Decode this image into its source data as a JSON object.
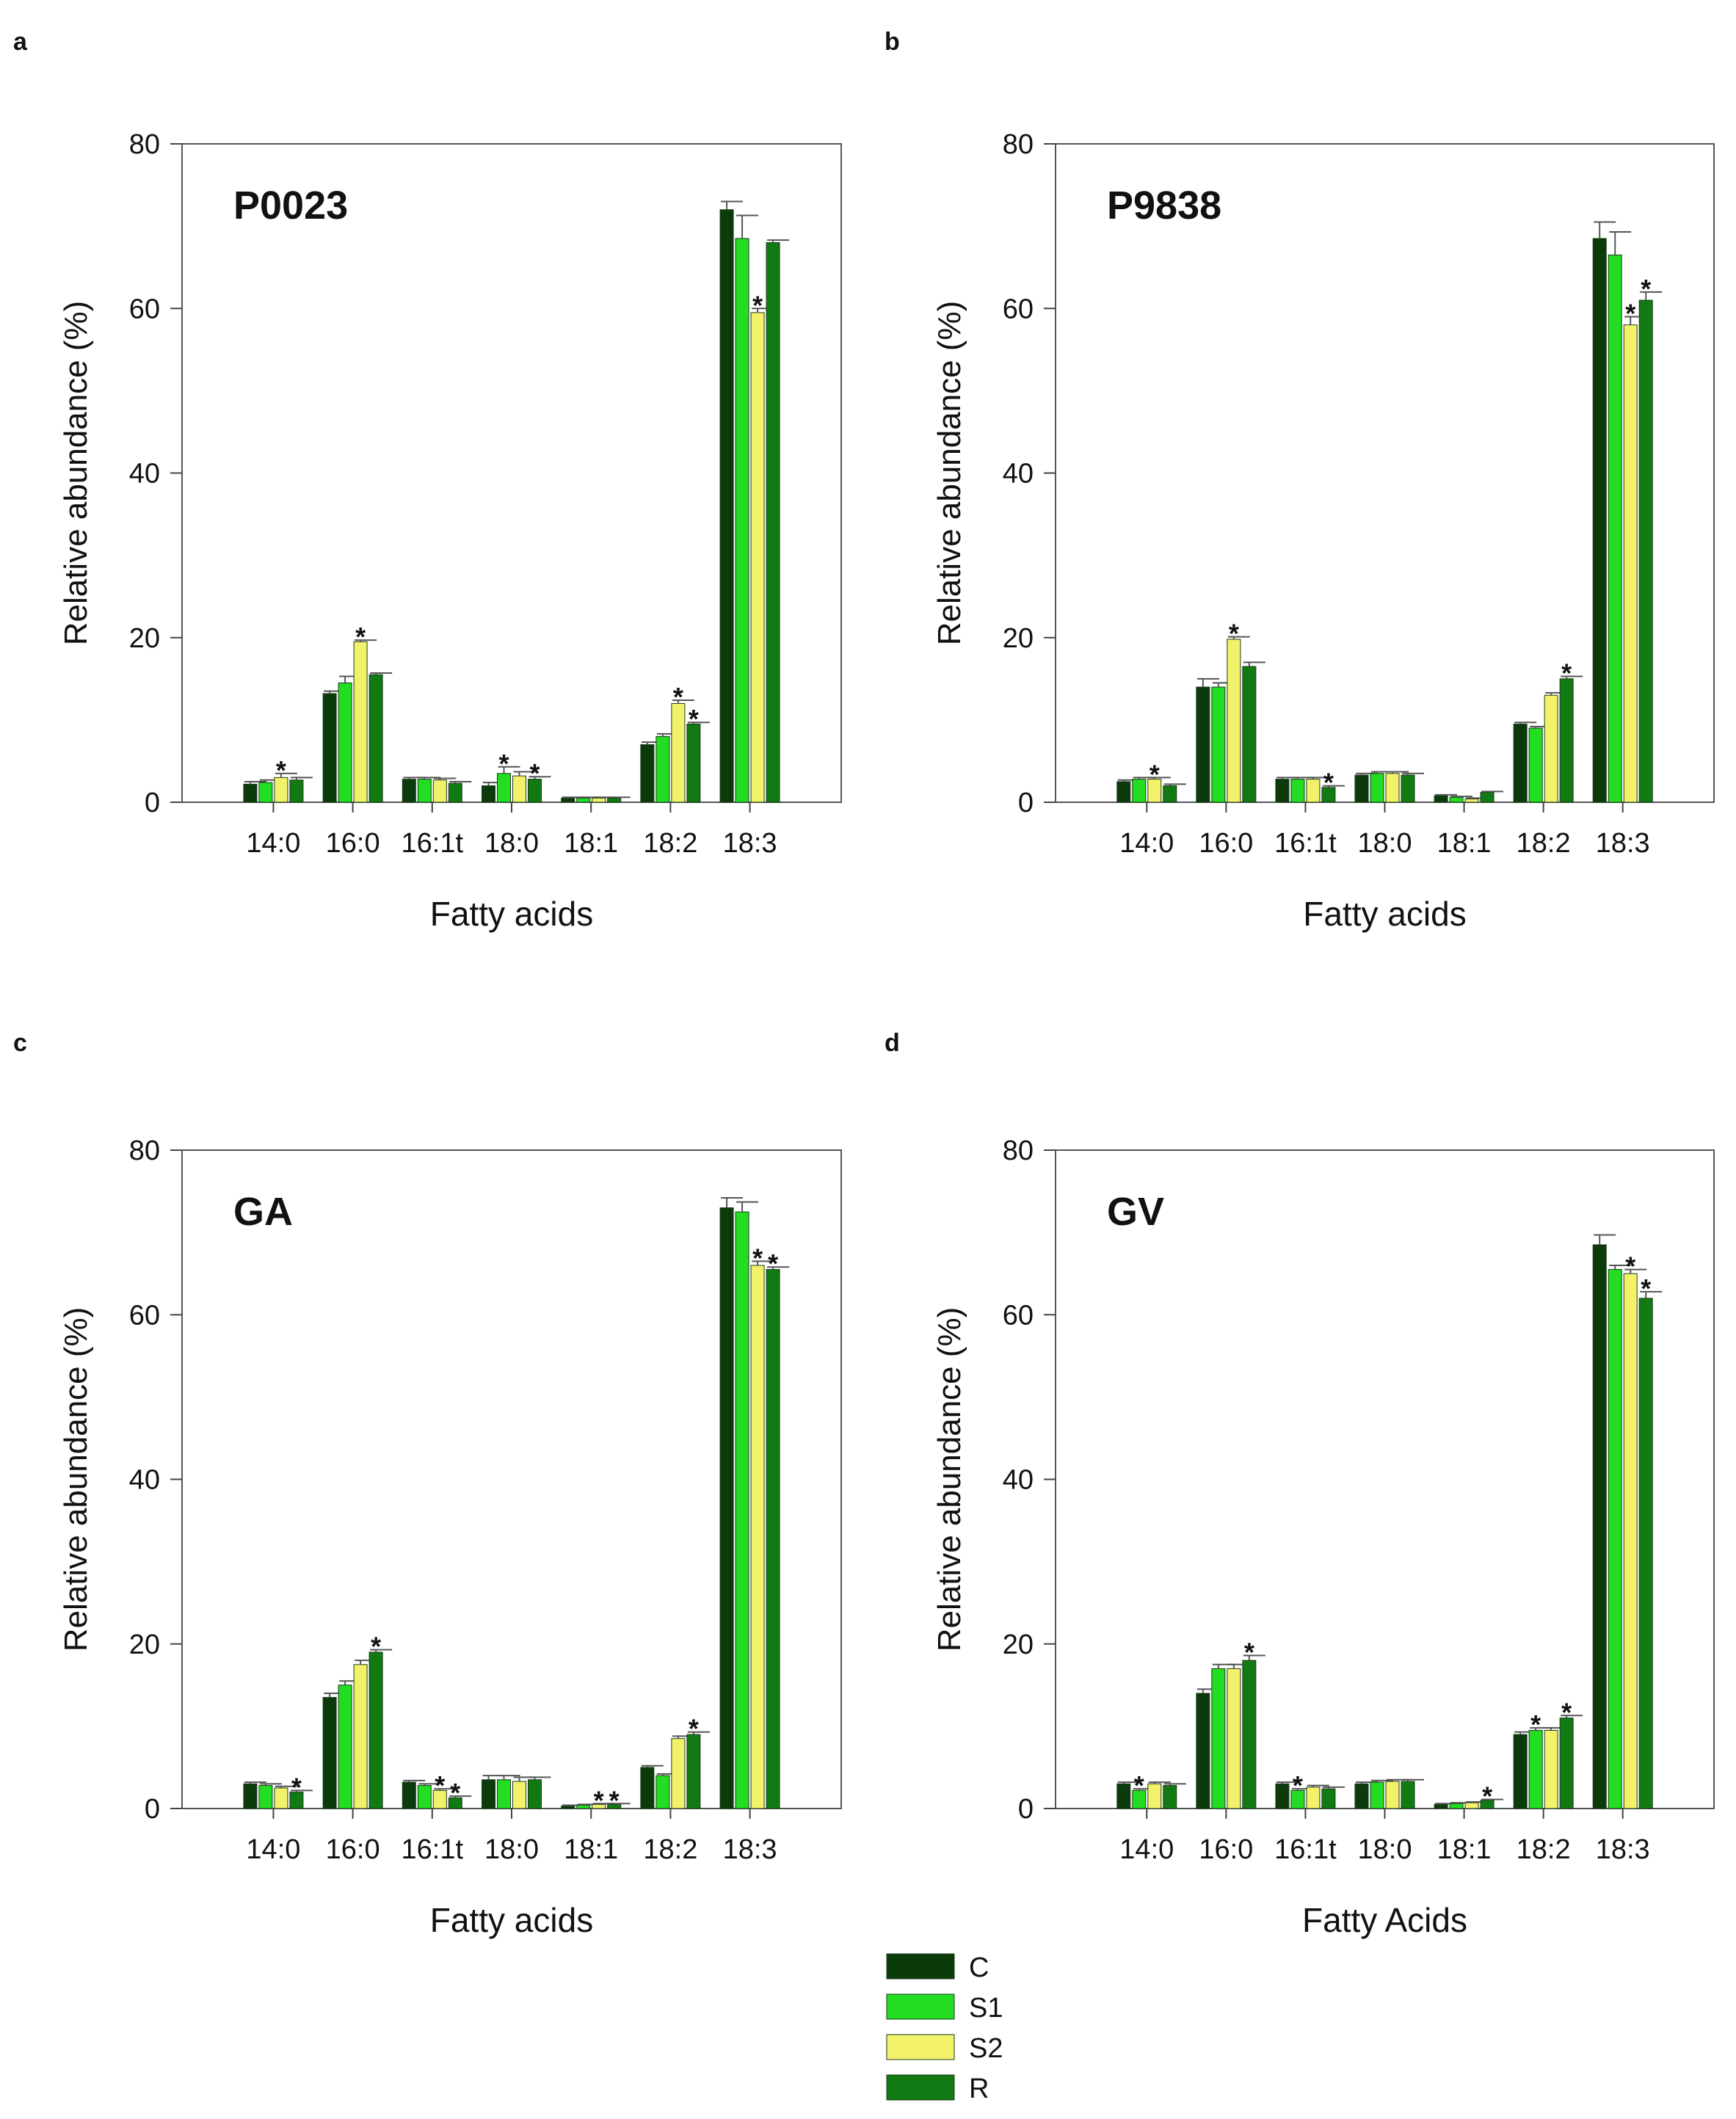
{
  "legend": [
    {
      "key": "C",
      "label": "C",
      "color": "#0b3a0b"
    },
    {
      "key": "S1",
      "label": "S1",
      "color": "#22dd22"
    },
    {
      "key": "S2",
      "label": "S2",
      "color": "#f2f26a"
    },
    {
      "key": "R",
      "label": "R",
      "color": "#127a12"
    }
  ],
  "chart_data": [
    {
      "type": "bar",
      "panel_letter": "a",
      "title": "P0023",
      "xlabel": "Fatty acids",
      "ylabel": "Relative abundance (%)",
      "ylim": [
        0,
        80
      ],
      "yticks": [
        0,
        20,
        40,
        60,
        80
      ],
      "categories": [
        "14:0",
        "16:0",
        "16:1t",
        "18:0",
        "18:1",
        "18:2",
        "18:3"
      ],
      "series": [
        {
          "name": "C",
          "values": [
            2.2,
            13.2,
            2.8,
            2.0,
            0.5,
            7.0,
            72.0
          ],
          "errors": [
            0.3,
            0.3,
            0.2,
            0.4,
            0.1,
            0.3,
            1.0
          ]
        },
        {
          "name": "S1",
          "values": [
            2.4,
            14.5,
            2.8,
            3.5,
            0.5,
            8.0,
            68.5
          ],
          "errors": [
            0.3,
            0.8,
            0.2,
            0.8,
            0.1,
            0.3,
            2.8
          ]
        },
        {
          "name": "S2",
          "values": [
            3.0,
            19.5,
            2.7,
            3.2,
            0.5,
            12.0,
            59.5
          ],
          "errors": [
            0.5,
            0.2,
            0.2,
            0.5,
            0.1,
            0.4,
            0.5
          ]
        },
        {
          "name": "R",
          "values": [
            2.7,
            15.5,
            2.3,
            2.8,
            0.5,
            9.5,
            68.0
          ],
          "errors": [
            0.3,
            0.2,
            0.2,
            0.3,
            0.1,
            0.2,
            0.3
          ]
        }
      ],
      "significance_marks": [
        {
          "category": "14:0",
          "series": "S2",
          "label": "*"
        },
        {
          "category": "16:0",
          "series": "S2",
          "label": "*"
        },
        {
          "category": "18:0",
          "series": "S1",
          "label": "*"
        },
        {
          "category": "18:0",
          "series": "R",
          "label": "*"
        },
        {
          "category": "18:2",
          "series": "S2",
          "label": "*"
        },
        {
          "category": "18:2",
          "series": "R",
          "label": "*"
        },
        {
          "category": "18:3",
          "series": "S2",
          "label": "*"
        }
      ]
    },
    {
      "type": "bar",
      "panel_letter": "b",
      "title": "P9838",
      "xlabel": "Fatty acids",
      "ylabel": "Relative abundance (%)",
      "ylim": [
        0,
        80
      ],
      "yticks": [
        0,
        20,
        40,
        60,
        80
      ],
      "categories": [
        "14:0",
        "16:0",
        "16:1t",
        "18:0",
        "18:1",
        "18:2",
        "18:3"
      ],
      "series": [
        {
          "name": "C",
          "values": [
            2.5,
            14.0,
            2.8,
            3.3,
            0.8,
            9.5,
            68.5
          ],
          "errors": [
            0.2,
            1.0,
            0.2,
            0.2,
            0.1,
            0.2,
            2.0
          ]
        },
        {
          "name": "S1",
          "values": [
            2.8,
            14.0,
            2.8,
            3.5,
            0.6,
            9.0,
            66.5
          ],
          "errors": [
            0.2,
            0.5,
            0.2,
            0.2,
            0.1,
            0.2,
            2.8
          ]
        },
        {
          "name": "S2",
          "values": [
            2.8,
            19.8,
            2.8,
            3.5,
            0.4,
            13.0,
            58.0
          ],
          "errors": [
            0.2,
            0.3,
            0.2,
            0.2,
            0.1,
            0.3,
            1.0
          ]
        },
        {
          "name": "R",
          "values": [
            2.0,
            16.5,
            1.8,
            3.3,
            1.2,
            15.0,
            61.0
          ],
          "errors": [
            0.2,
            0.5,
            0.2,
            0.2,
            0.1,
            0.3,
            1.0
          ]
        }
      ],
      "significance_marks": [
        {
          "category": "14:0",
          "series": "S2",
          "label": "*"
        },
        {
          "category": "16:0",
          "series": "S2",
          "label": "*"
        },
        {
          "category": "16:1t",
          "series": "R",
          "label": "*"
        },
        {
          "category": "18:2",
          "series": "R",
          "label": "*"
        },
        {
          "category": "18:3",
          "series": "S2",
          "label": "*"
        },
        {
          "category": "18:3",
          "series": "R",
          "label": "*"
        }
      ]
    },
    {
      "type": "bar",
      "panel_letter": "c",
      "title": "GA",
      "xlabel": "Fatty acids",
      "ylabel": "Relative abundance (%)",
      "ylim": [
        0,
        80
      ],
      "yticks": [
        0,
        20,
        40,
        60,
        80
      ],
      "categories": [
        "14:0",
        "16:0",
        "16:1t",
        "18:0",
        "18:1",
        "18:2",
        "18:3"
      ],
      "series": [
        {
          "name": "C",
          "values": [
            3.0,
            13.5,
            3.2,
            3.5,
            0.3,
            5.0,
            73.0
          ],
          "errors": [
            0.2,
            0.5,
            0.2,
            0.5,
            0.1,
            0.2,
            1.2
          ]
        },
        {
          "name": "S1",
          "values": [
            2.8,
            15.0,
            2.8,
            3.5,
            0.4,
            4.0,
            72.5
          ],
          "errors": [
            0.2,
            0.5,
            0.2,
            0.5,
            0.1,
            0.2,
            1.2
          ]
        },
        {
          "name": "S2",
          "values": [
            2.5,
            17.5,
            2.2,
            3.3,
            0.5,
            8.5,
            66.0
          ],
          "errors": [
            0.2,
            0.5,
            0.2,
            0.5,
            0.1,
            0.3,
            0.5
          ]
        },
        {
          "name": "R",
          "values": [
            2.0,
            19.0,
            1.3,
            3.5,
            0.5,
            9.0,
            65.5
          ],
          "errors": [
            0.2,
            0.3,
            0.2,
            0.3,
            0.1,
            0.3,
            0.3
          ]
        }
      ],
      "significance_marks": [
        {
          "category": "14:0",
          "series": "R",
          "label": "*"
        },
        {
          "category": "16:0",
          "series": "R",
          "label": "*"
        },
        {
          "category": "16:1t",
          "series": "S2",
          "label": "*"
        },
        {
          "category": "16:1t",
          "series": "R",
          "label": "*"
        },
        {
          "category": "18:1",
          "series": "S2",
          "label": "*"
        },
        {
          "category": "18:1",
          "series": "R",
          "label": "*"
        },
        {
          "category": "18:2",
          "series": "R",
          "label": "*"
        },
        {
          "category": "18:3",
          "series": "S2",
          "label": "*"
        },
        {
          "category": "18:3",
          "series": "R",
          "label": "*"
        }
      ]
    },
    {
      "type": "bar",
      "panel_letter": "d",
      "title": "GV",
      "xlabel": "Fatty Acids",
      "ylabel": "Relative abundance (%)",
      "ylim": [
        0,
        80
      ],
      "yticks": [
        0,
        20,
        40,
        60,
        80
      ],
      "categories": [
        "14:0",
        "16:0",
        "16:1t",
        "18:0",
        "18:1",
        "18:2",
        "18:3"
      ],
      "series": [
        {
          "name": "C",
          "values": [
            3.0,
            14.0,
            3.0,
            3.0,
            0.5,
            9.0,
            68.5
          ],
          "errors": [
            0.2,
            0.5,
            0.2,
            0.2,
            0.1,
            0.3,
            1.2
          ]
        },
        {
          "name": "S1",
          "values": [
            2.2,
            17.0,
            2.2,
            3.2,
            0.6,
            9.5,
            65.5
          ],
          "errors": [
            0.2,
            0.5,
            0.2,
            0.2,
            0.1,
            0.3,
            0.5
          ]
        },
        {
          "name": "S2",
          "values": [
            3.0,
            17.0,
            2.6,
            3.3,
            0.7,
            9.5,
            65.0
          ],
          "errors": [
            0.2,
            0.5,
            0.2,
            0.2,
            0.1,
            0.3,
            0.5
          ]
        },
        {
          "name": "R",
          "values": [
            2.8,
            18.0,
            2.4,
            3.3,
            1.0,
            11.0,
            62.0
          ],
          "errors": [
            0.2,
            0.6,
            0.2,
            0.2,
            0.1,
            0.3,
            0.8
          ]
        }
      ],
      "significance_marks": [
        {
          "category": "14:0",
          "series": "S1",
          "label": "*"
        },
        {
          "category": "16:0",
          "series": "R",
          "label": "*"
        },
        {
          "category": "16:1t",
          "series": "S1",
          "label": "*"
        },
        {
          "category": "18:1",
          "series": "R",
          "label": "*"
        },
        {
          "category": "18:2",
          "series": "S1",
          "label": "*"
        },
        {
          "category": "18:2",
          "series": "R",
          "label": "*"
        },
        {
          "category": "18:3",
          "series": "S2",
          "label": "*"
        },
        {
          "category": "18:3",
          "series": "R",
          "label": "*"
        }
      ]
    }
  ]
}
